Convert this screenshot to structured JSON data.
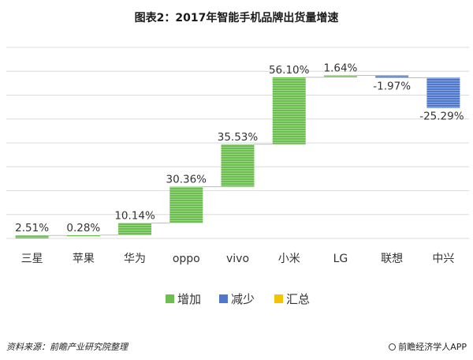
{
  "title": "图表2：2017年智能手机品牌出货量增速",
  "footer": {
    "source": "资料来源：前瞻产业研究院整理",
    "brand": "前瞻经济学人APP"
  },
  "colors": {
    "increase": "#6cbf4f",
    "decrease": "#4f78cc",
    "total": "#f2c400",
    "grid": "#dcdcdc"
  },
  "chart_data": {
    "type": "bar",
    "subtype": "waterfall",
    "title": "图表2：2017年智能手机品牌出货量增速",
    "categories": [
      "三星",
      "苹果",
      "华为",
      "oppo",
      "vivo",
      "小米",
      "LG",
      "联想",
      "中兴"
    ],
    "values": [
      2.51,
      0.28,
      10.14,
      30.36,
      35.53,
      56.1,
      1.64,
      -1.97,
      -25.29
    ],
    "data_labels": [
      "2.51%",
      "0.28%",
      "10.14%",
      "30.36%",
      "35.53%",
      "56.10%",
      "1.64%",
      "-1.97%",
      "-25.29%"
    ],
    "legend": [
      "增加",
      "减少",
      "汇总"
    ],
    "legend_position": "bottom",
    "ylim": [
      0,
      160
    ],
    "grid": true
  }
}
